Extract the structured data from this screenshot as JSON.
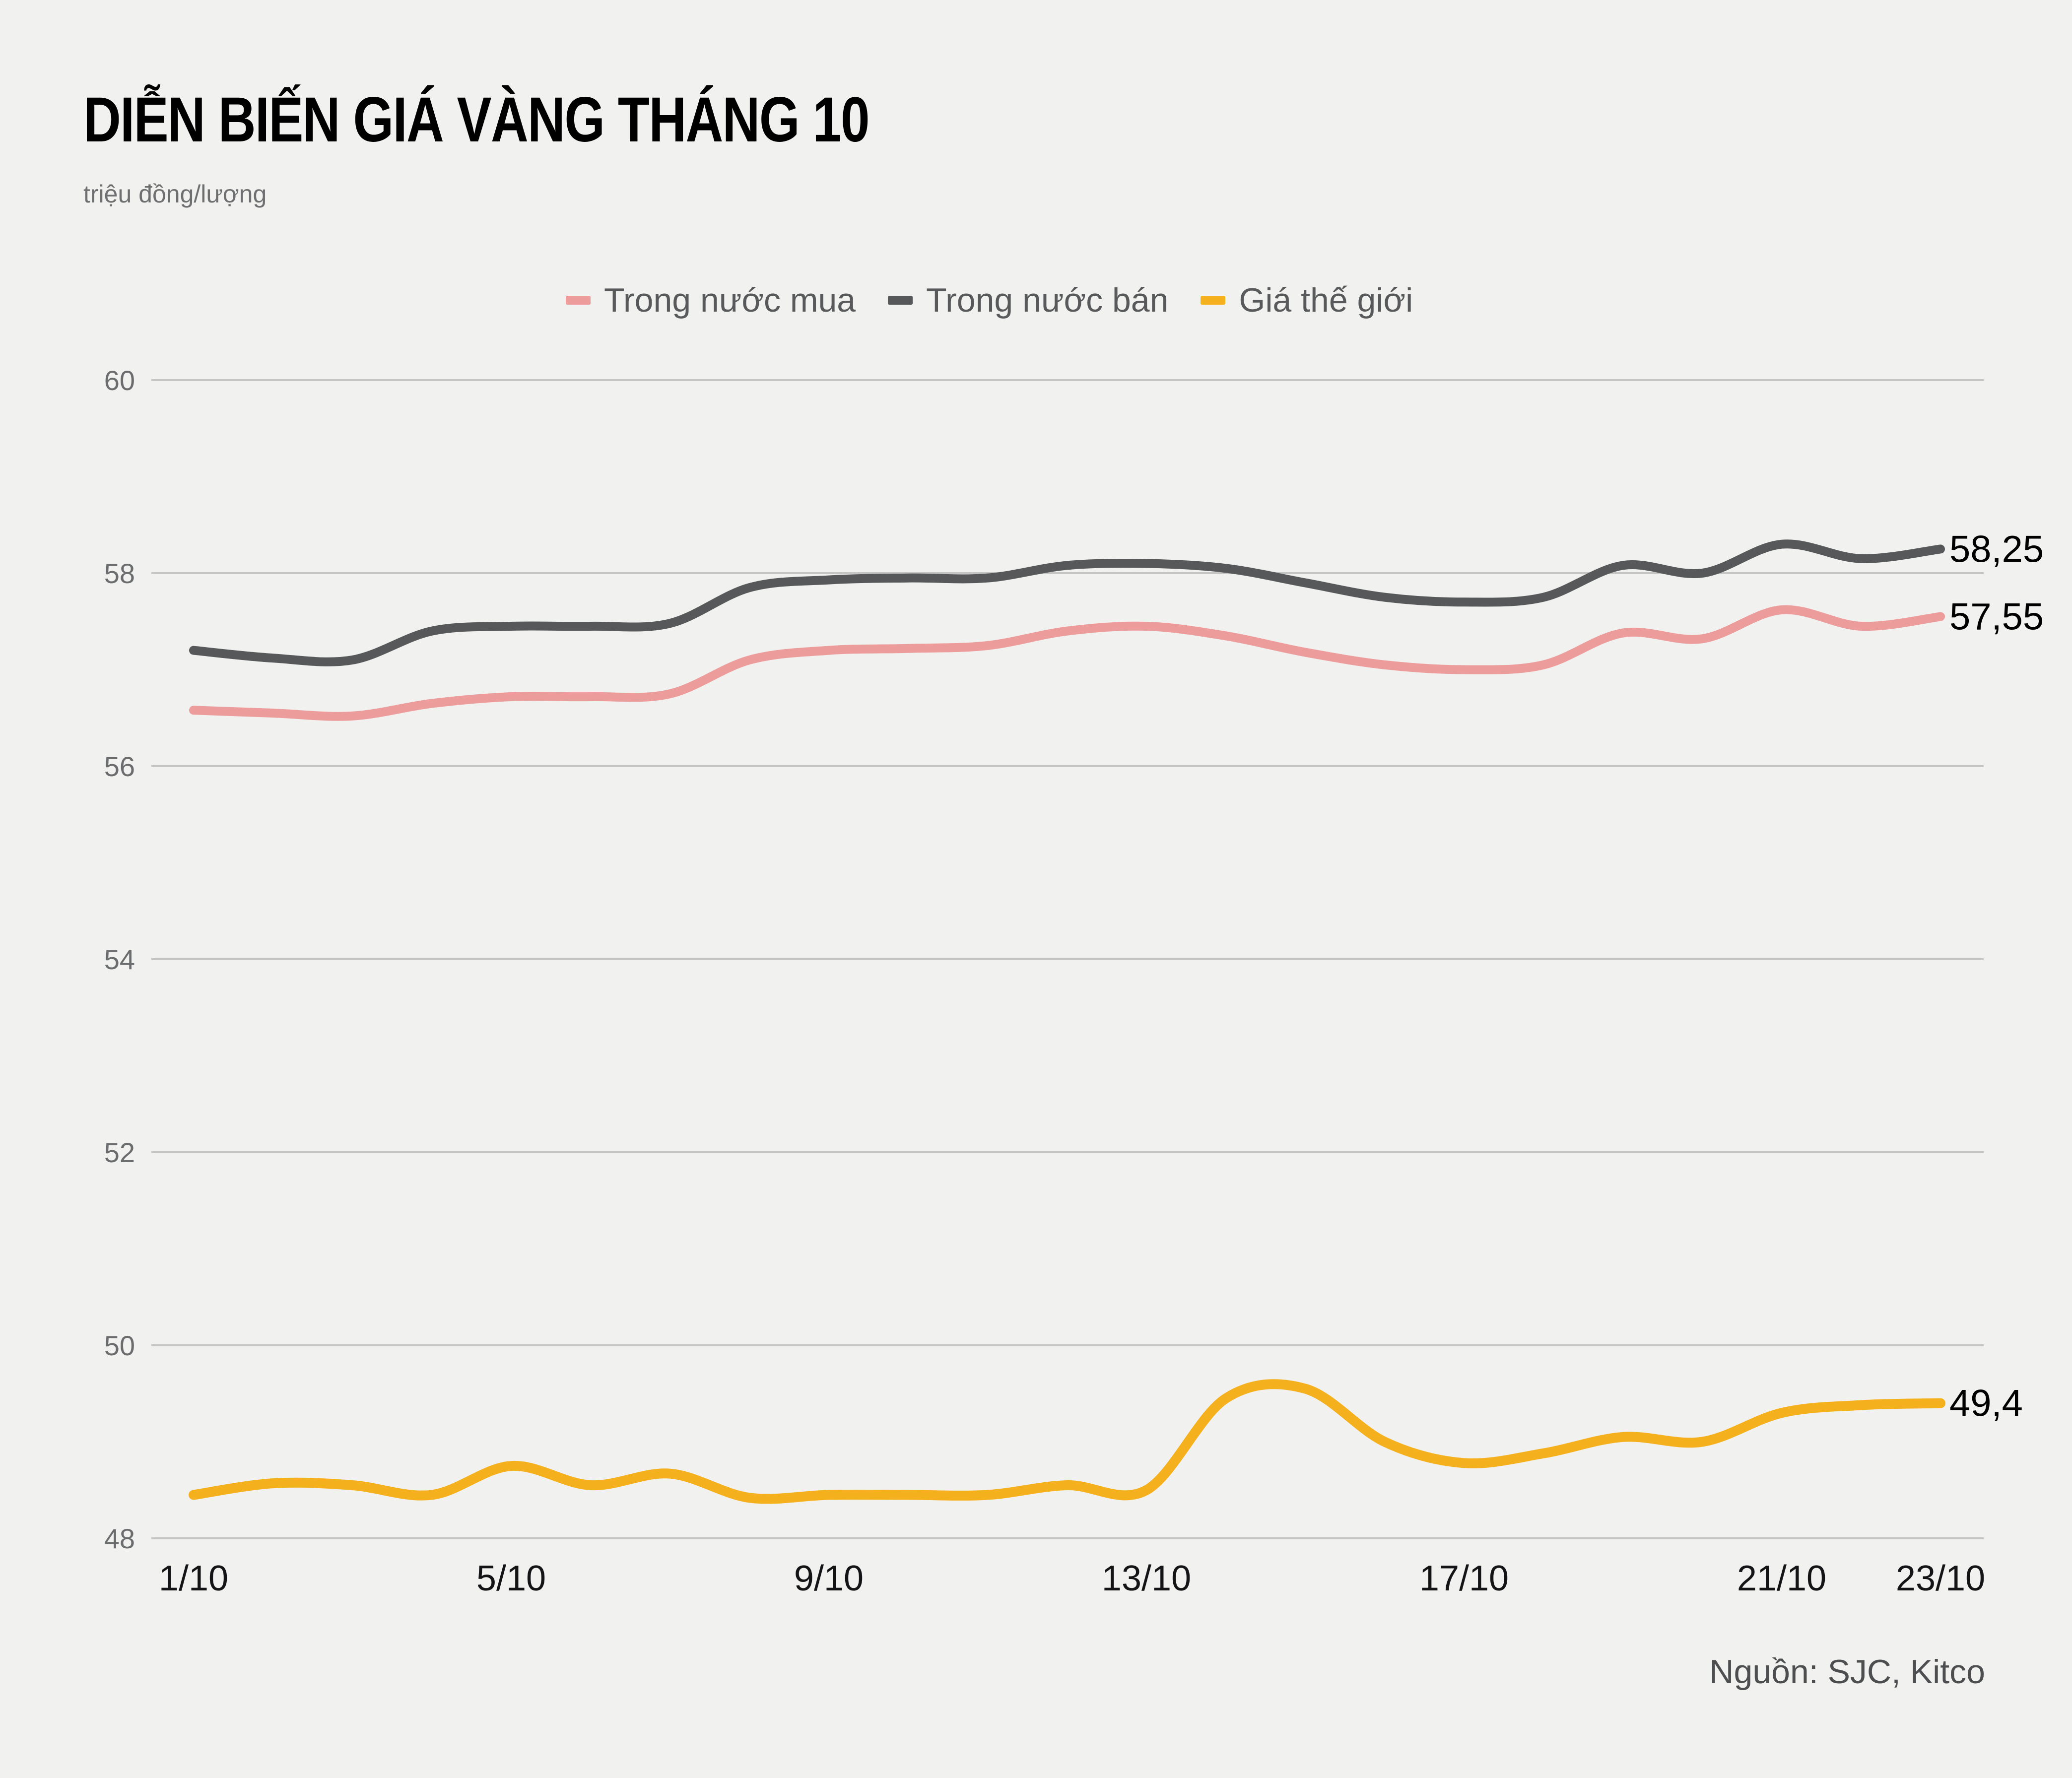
{
  "title": "DIỄN BIẾN GIÁ VÀNG THÁNG 10",
  "subtitle": "triệu đồng/lượng",
  "source": "Nguồn: SJC, Kitco",
  "colors": {
    "background": "#f1f1ef",
    "grid": "#c5c5c3",
    "y_tick_text": "#6b6c6e",
    "x_tick_text": "#141416",
    "end_label_text": "#000000",
    "legend_text": "#58595b",
    "buy_line": "#ec9c9b",
    "sell_line": "#57585a",
    "world_line": "#f5b01e"
  },
  "chart_data": {
    "type": "line",
    "title": "DIỄN BIẾN GIÁ VÀNG THÁNG 10",
    "ylabel": "triệu đồng/lượng",
    "ylim": [
      48,
      60
    ],
    "y_ticks": [
      48,
      50,
      52,
      54,
      56,
      58,
      60
    ],
    "grid": "horizontal",
    "legend_position": "top",
    "x": [
      1,
      2,
      3,
      4,
      5,
      6,
      7,
      8,
      9,
      10,
      11,
      12,
      13,
      14,
      15,
      16,
      17,
      18,
      19,
      20,
      21,
      22,
      23
    ],
    "x_tick_days": [
      1,
      5,
      9,
      13,
      17,
      21,
      23
    ],
    "x_tick_labels": [
      "1/10",
      "5/10",
      "9/10",
      "13/10",
      "17/10",
      "21/10",
      "23/10"
    ],
    "series": [
      {
        "name": "Trong nước mua",
        "color": "#ec9c9b",
        "stroke_width": 18,
        "end_label": "57,55",
        "values": [
          56.58,
          56.55,
          56.52,
          56.65,
          56.72,
          56.72,
          56.75,
          57.1,
          57.2,
          57.22,
          57.25,
          57.4,
          57.45,
          57.35,
          57.18,
          57.05,
          57.0,
          57.05,
          57.38,
          57.32,
          57.62,
          57.45,
          57.55
        ]
      },
      {
        "name": "Trong nước bán",
        "color": "#57585a",
        "stroke_width": 18,
        "end_label": "58,25",
        "values": [
          57.2,
          57.12,
          57.1,
          57.4,
          57.45,
          57.45,
          57.48,
          57.85,
          57.93,
          57.95,
          57.95,
          58.08,
          58.1,
          58.05,
          57.9,
          57.75,
          57.7,
          57.75,
          58.08,
          58.0,
          58.3,
          58.15,
          58.25
        ]
      },
      {
        "name": "Giá thế giới",
        "color": "#f5b01e",
        "stroke_width": 20,
        "end_label": "49,4",
        "values": [
          48.45,
          48.57,
          48.55,
          48.45,
          48.75,
          48.55,
          48.67,
          48.42,
          48.45,
          48.45,
          48.45,
          48.55,
          48.5,
          49.45,
          49.55,
          49.0,
          48.78,
          48.88,
          49.05,
          49.0,
          49.3,
          49.38,
          49.4
        ]
      }
    ]
  }
}
